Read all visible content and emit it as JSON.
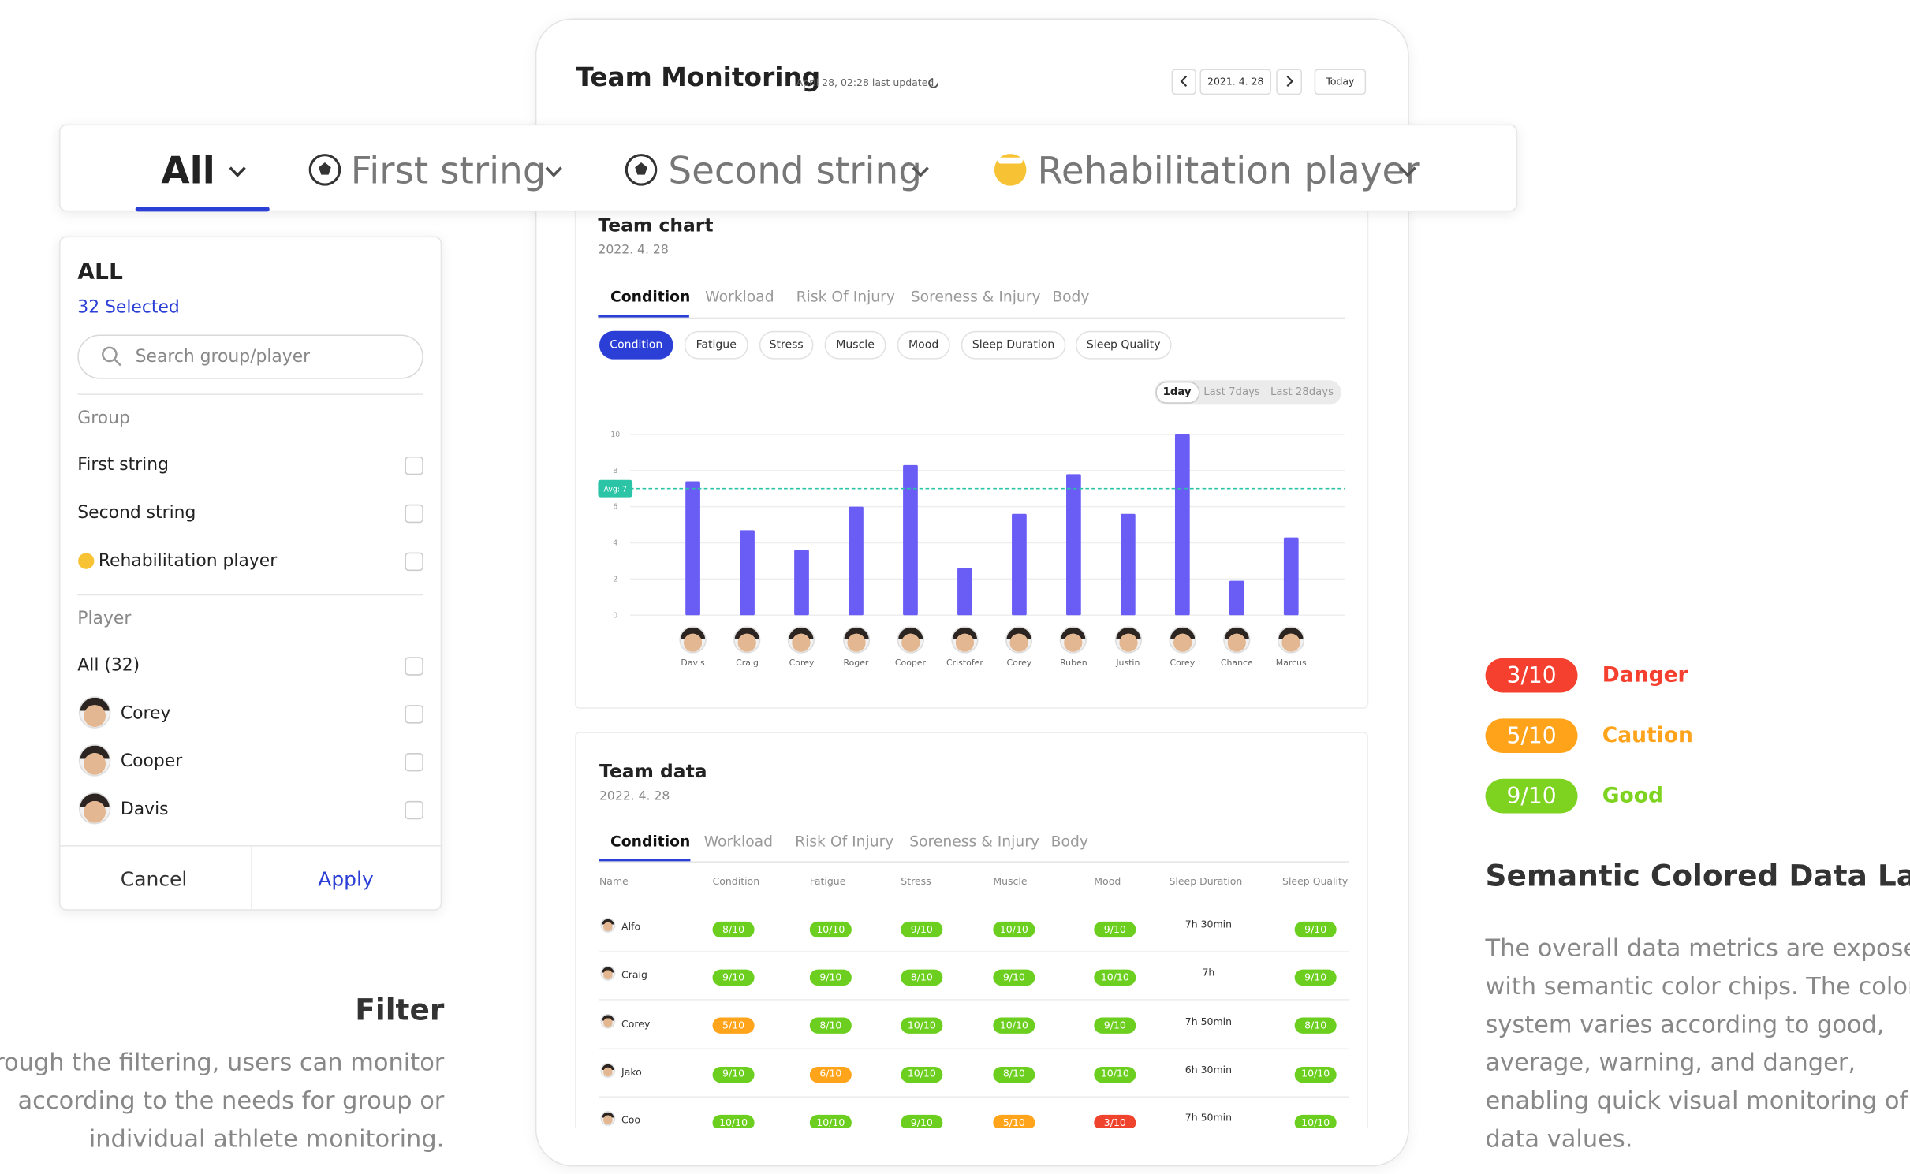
{
  "header": {
    "title": "Team Monitoring",
    "updated": "April 28, 02:28 last updated",
    "date": "2021. 4. 28",
    "today": "Today"
  },
  "group_tabs": [
    "All",
    "First string",
    "Second string",
    "Rehabilitation player"
  ],
  "filter_panel": {
    "title": "ALL",
    "selected": "32 Selected",
    "search_placeholder": "Search group/player",
    "group_heading": "Group",
    "groups": [
      "First string",
      "Second string",
      "Rehabilitation player"
    ],
    "player_heading": "Player",
    "players": [
      "All (32)",
      "Corey",
      "Cooper",
      "Davis"
    ],
    "cancel": "Cancel",
    "apply": "Apply"
  },
  "team_chart": {
    "title": "Team chart",
    "date": "2022. 4. 28",
    "tabs": [
      "Condition",
      "Workload",
      "Risk Of Injury",
      "Soreness & Injury",
      "Body"
    ],
    "metrics": [
      "Condition",
      "Fatigue",
      "Stress",
      "Muscle",
      "Mood",
      "Sleep Duration",
      "Sleep Quality"
    ],
    "ranges": [
      "1day",
      "Last 7days",
      "Last 28days"
    ]
  },
  "chart_data": {
    "type": "bar",
    "categories": [
      "Davis",
      "Craig",
      "Corey",
      "Roger",
      "Cooper",
      "Cristofer",
      "Corey",
      "Ruben",
      "Justin",
      "Corey",
      "Chance",
      "Marcus"
    ],
    "values": [
      7.4,
      4.7,
      3.6,
      6.0,
      8.3,
      2.6,
      5.6,
      7.8,
      5.6,
      10,
      1.9,
      4.3
    ],
    "color": "#6a5df5",
    "ylim": [
      0,
      10
    ],
    "yticks": [
      0,
      2,
      4,
      6,
      8,
      10
    ],
    "grid": true,
    "average": {
      "value": 7,
      "label": "Avg: 7",
      "color": "#2cc4a6"
    }
  },
  "team_data": {
    "title": "Team data",
    "date": "2022. 4. 28",
    "tabs": [
      "Condition",
      "Workload",
      "Risk Of Injury",
      "Soreness & Injury",
      "Body"
    ],
    "columns": [
      "Name",
      "Condition",
      "Fatigue",
      "Stress",
      "Muscle",
      "Mood",
      "Sleep Duration",
      "Sleep Quality"
    ],
    "rows": [
      {
        "name": "Alfo",
        "cells": [
          {
            "text": "8/10",
            "color": "#6ccf1f"
          },
          {
            "text": "10/10",
            "color": "#6ccf1f"
          },
          {
            "text": "9/10",
            "color": "#6ccf1f"
          },
          {
            "text": "10/10",
            "color": "#6ccf1f"
          },
          {
            "text": "9/10",
            "color": "#6ccf1f"
          },
          "7h 30min",
          {
            "text": "9/10",
            "color": "#6ccf1f"
          }
        ]
      },
      {
        "name": "Craig",
        "cells": [
          {
            "text": "9/10",
            "color": "#6ccf1f"
          },
          {
            "text": "9/10",
            "color": "#6ccf1f"
          },
          {
            "text": "8/10",
            "color": "#6ccf1f"
          },
          {
            "text": "9/10",
            "color": "#6ccf1f"
          },
          {
            "text": "10/10",
            "color": "#6ccf1f"
          },
          "7h",
          {
            "text": "9/10",
            "color": "#6ccf1f"
          }
        ]
      },
      {
        "name": "Corey",
        "cells": [
          {
            "text": "5/10",
            "color": "#ffa41b"
          },
          {
            "text": "8/10",
            "color": "#6ccf1f"
          },
          {
            "text": "10/10",
            "color": "#6ccf1f"
          },
          {
            "text": "10/10",
            "color": "#6ccf1f"
          },
          {
            "text": "9/10",
            "color": "#6ccf1f"
          },
          "7h 50min",
          {
            "text": "8/10",
            "color": "#6ccf1f"
          }
        ]
      },
      {
        "name": "Jako",
        "cells": [
          {
            "text": "9/10",
            "color": "#6ccf1f"
          },
          {
            "text": "6/10",
            "color": "#ffa41b"
          },
          {
            "text": "10/10",
            "color": "#6ccf1f"
          },
          {
            "text": "8/10",
            "color": "#6ccf1f"
          },
          {
            "text": "10/10",
            "color": "#6ccf1f"
          },
          "6h 30min",
          {
            "text": "10/10",
            "color": "#6ccf1f"
          }
        ]
      },
      {
        "name": "Coo",
        "cells": [
          {
            "text": "10/10",
            "color": "#6ccf1f"
          },
          {
            "text": "10/10",
            "color": "#6ccf1f"
          },
          {
            "text": "9/10",
            "color": "#6ccf1f"
          },
          {
            "text": "5/10",
            "color": "#ffa41b"
          },
          {
            "text": "3/10",
            "color": "#f0432e"
          },
          "7h 50min",
          {
            "text": "10/10",
            "color": "#6ccf1f"
          }
        ]
      }
    ]
  },
  "filter_caption": {
    "title": "Filter",
    "lines": [
      "Through the filtering, users can monitor",
      "according to the needs for group or",
      "individual athlete monitoring."
    ]
  },
  "semantic_legend": {
    "items": [
      {
        "chip": "3/10",
        "label": "Danger",
        "color": "#f5402f"
      },
      {
        "chip": "5/10",
        "label": "Caution",
        "color": "#ffa31a"
      },
      {
        "chip": "9/10",
        "label": "Good",
        "color": "#7ed321"
      }
    ],
    "title": "Semantic Colored Data Label",
    "lines": [
      "The overall data metrics are exposed",
      "with semantic color chips. The color",
      "system varies according to good,",
      "average, warning, and danger,",
      "enabling quick visual monitoring of",
      "data values."
    ]
  }
}
